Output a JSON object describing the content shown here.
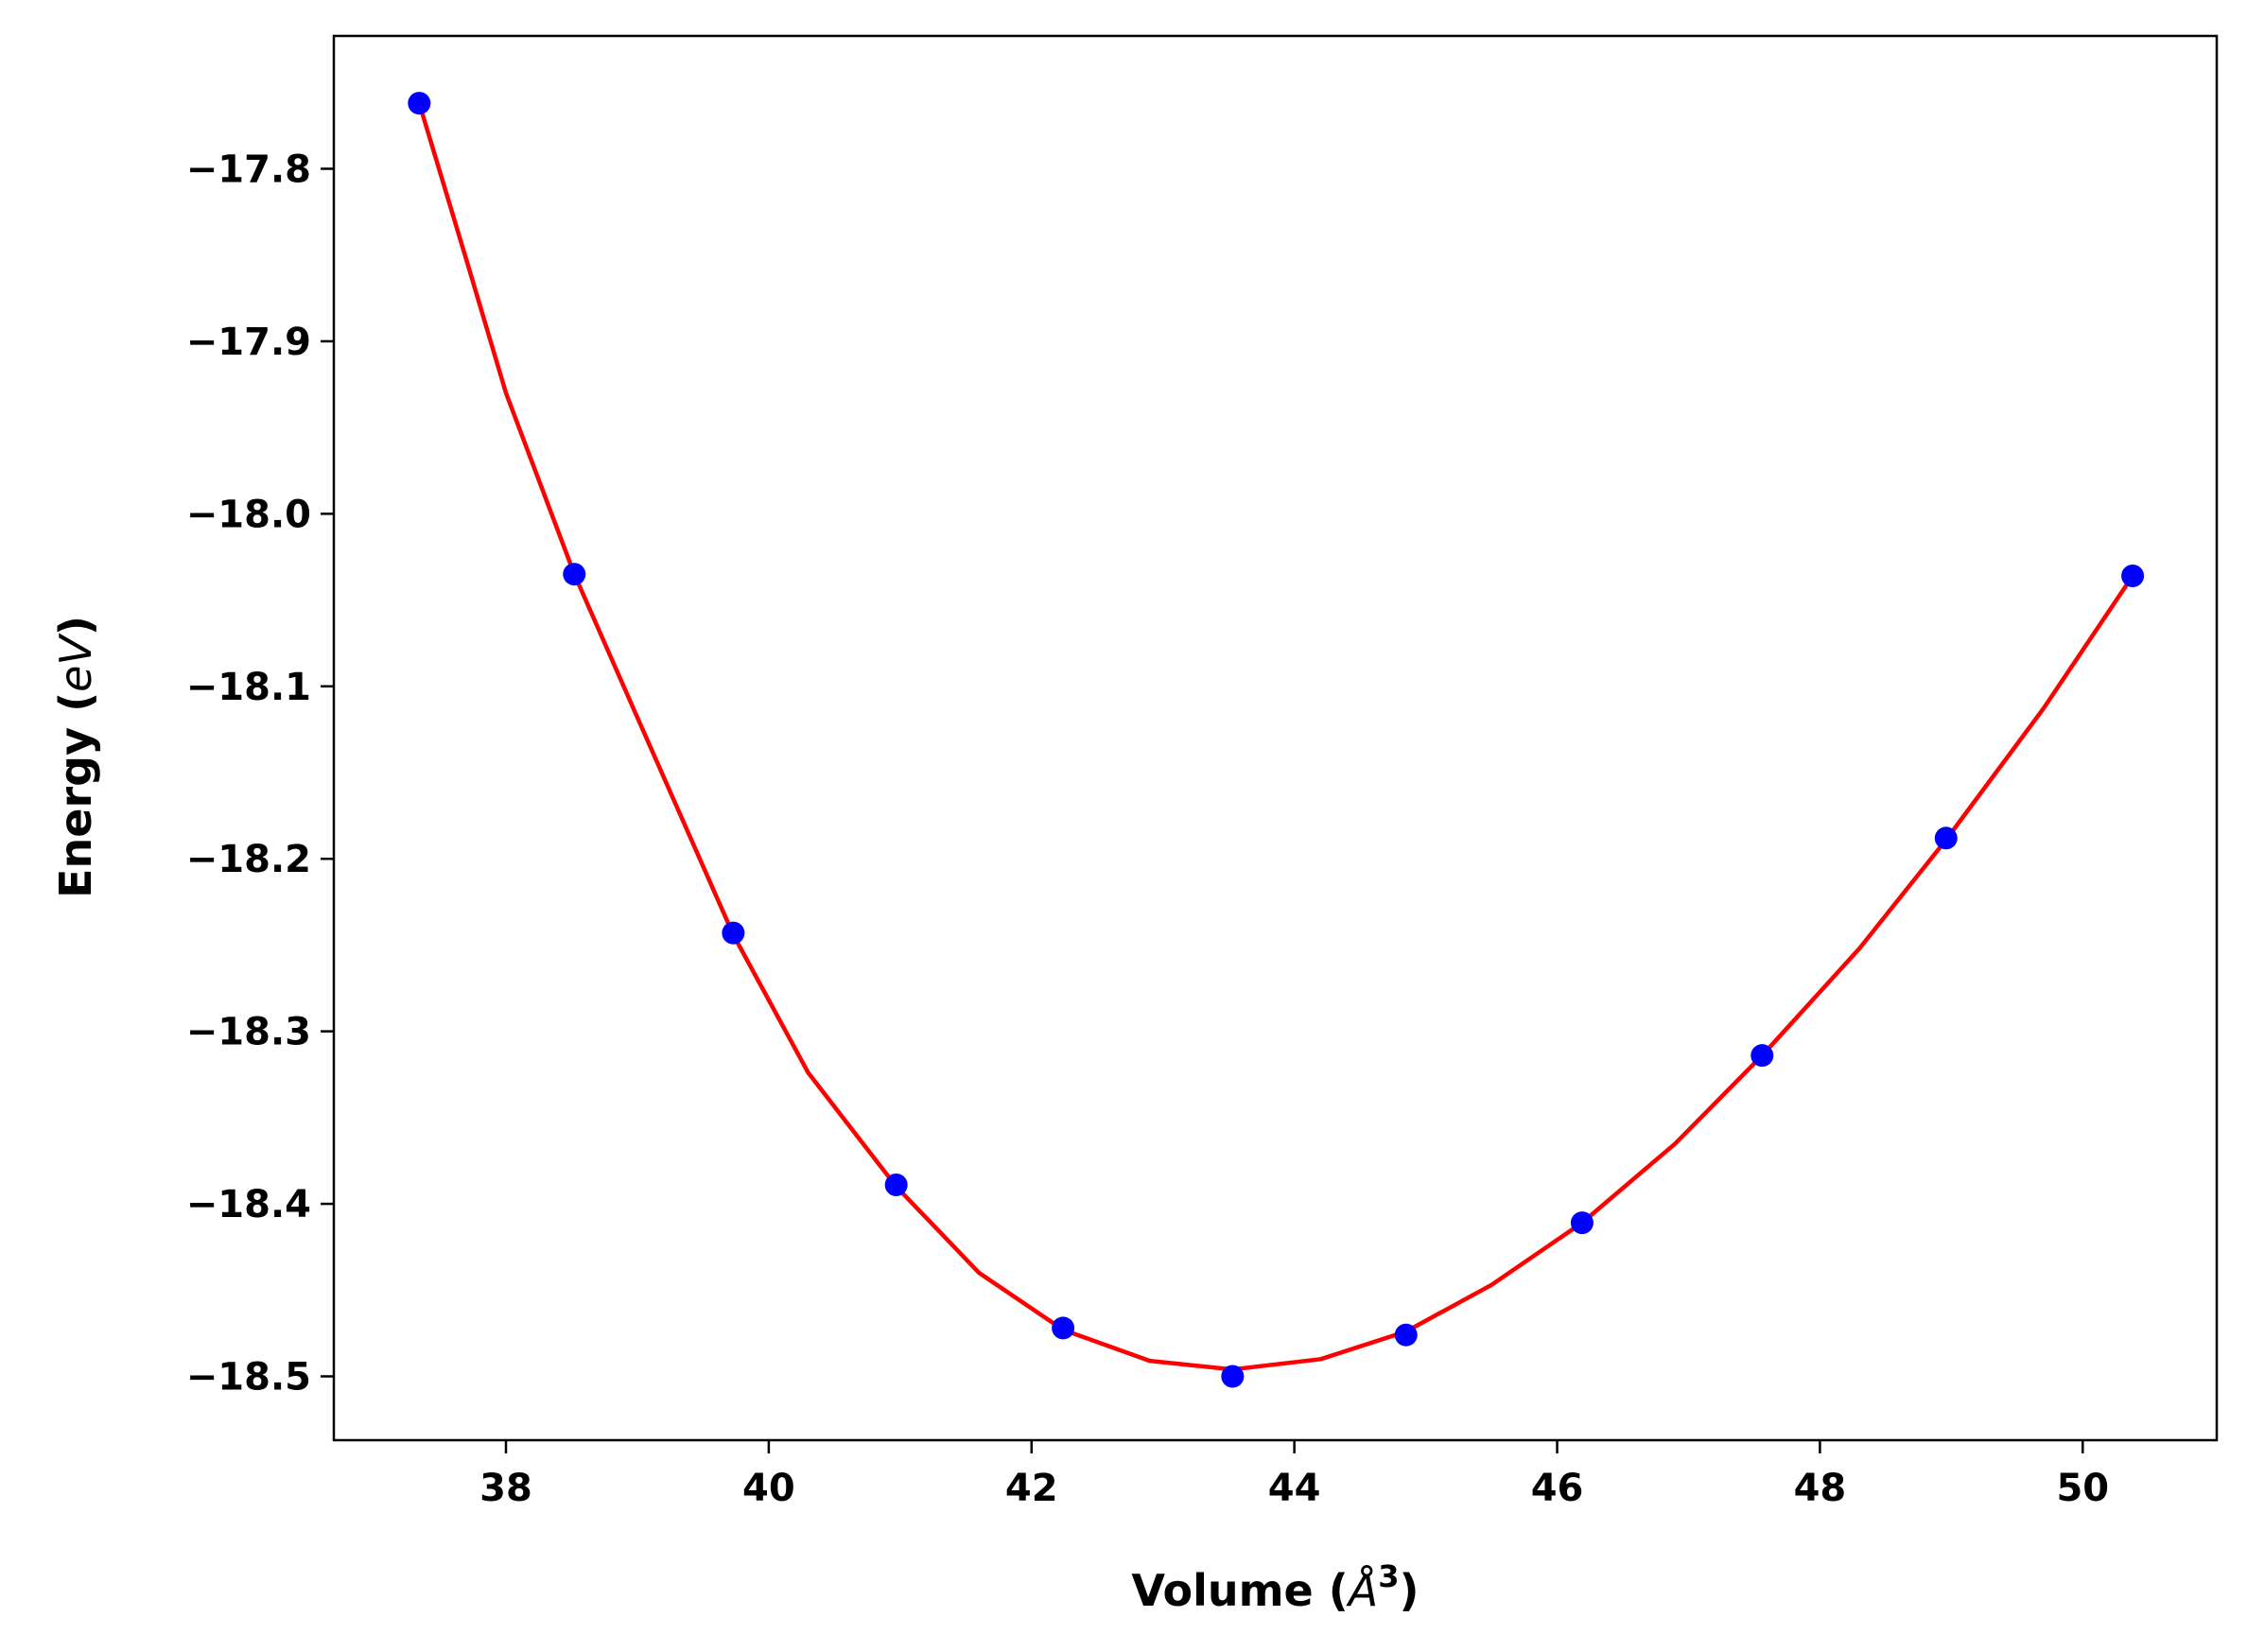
{
  "chart_data": {
    "type": "line",
    "title": "",
    "xlabel": {
      "prefix": "Volume (",
      "symbol": "Å",
      "power": "3",
      "suffix": ")"
    },
    "ylabel": {
      "prefix": "Energy (",
      "symbol": "eV",
      "suffix": ")"
    },
    "xlim": [
      36.69,
      51.02
    ],
    "ylim": [
      -18.537,
      -17.723
    ],
    "xticks": [
      38,
      40,
      42,
      44,
      46,
      48,
      50
    ],
    "xtick_labels": [
      "38",
      "40",
      "42",
      "44",
      "46",
      "48",
      "50"
    ],
    "yticks": [
      -17.8,
      -17.9,
      -18.0,
      -18.1,
      -18.2,
      -18.3,
      -18.4,
      -18.5
    ],
    "ytick_labels": [
      "−17.8",
      "−17.9",
      "−18.0",
      "−18.1",
      "−18.2",
      "−18.3",
      "−18.4",
      "−18.5"
    ],
    "grid": false,
    "legend": "none",
    "series": [
      {
        "kind": "scatter",
        "color": "#0000ff",
        "x": [
          37.34,
          38.52,
          39.73,
          40.97,
          42.24,
          43.53,
          44.85,
          46.19,
          47.56,
          48.96,
          50.38
        ],
        "y": [
          -17.762,
          -18.035,
          -18.243,
          -18.389,
          -18.472,
          -18.5,
          -18.476,
          -18.411,
          -18.314,
          -18.188,
          -18.036
        ]
      },
      {
        "kind": "fit-line",
        "color": "#ff0000",
        "x": [
          37.34,
          37.7,
          38.0,
          38.52,
          39.0,
          39.73,
          40.3,
          40.97,
          41.6,
          42.24,
          42.9,
          43.53,
          44.2,
          44.85,
          45.5,
          46.19,
          46.9,
          47.56,
          48.3,
          48.96,
          49.7,
          50.38
        ],
        "y": [
          -17.762,
          -17.853,
          -17.93,
          -18.035,
          -18.118,
          -18.244,
          -18.324,
          -18.39,
          -18.44,
          -18.473,
          -18.491,
          -18.496,
          -18.49,
          -18.474,
          -18.447,
          -18.411,
          -18.365,
          -18.314,
          -18.252,
          -18.189,
          -18.113,
          -18.036
        ]
      }
    ]
  }
}
